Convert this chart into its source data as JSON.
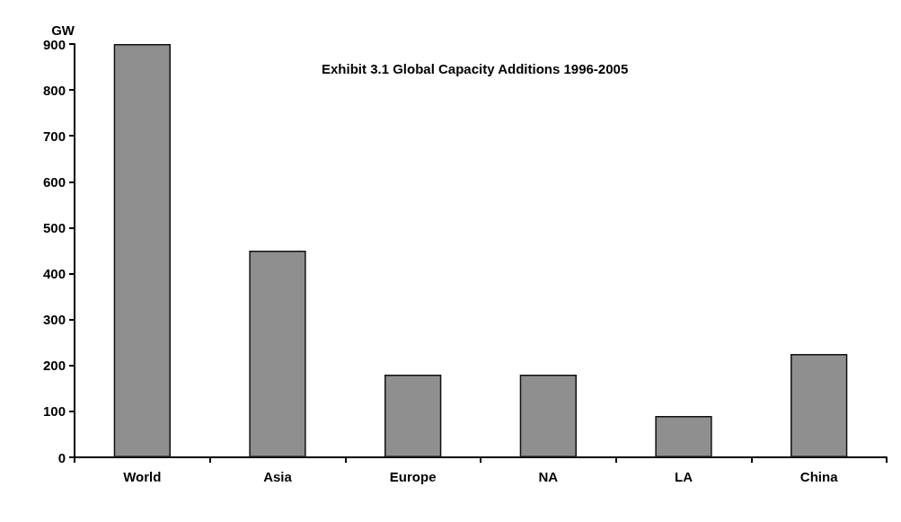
{
  "chart_data": {
    "type": "bar",
    "title": "Exhibit 3.1 Global Capacity Additions 1996-2005",
    "ylabel": "GW",
    "categories": [
      "World",
      "Asia",
      "Europe",
      "NA",
      "LA",
      "China"
    ],
    "values": [
      900,
      450,
      180,
      180,
      90,
      225
    ],
    "color": "#8f8f8f",
    "ylim": [
      0,
      900
    ],
    "yticks": [
      0,
      100,
      200,
      300,
      400,
      500,
      600,
      700,
      800,
      900
    ],
    "grid": false
  }
}
